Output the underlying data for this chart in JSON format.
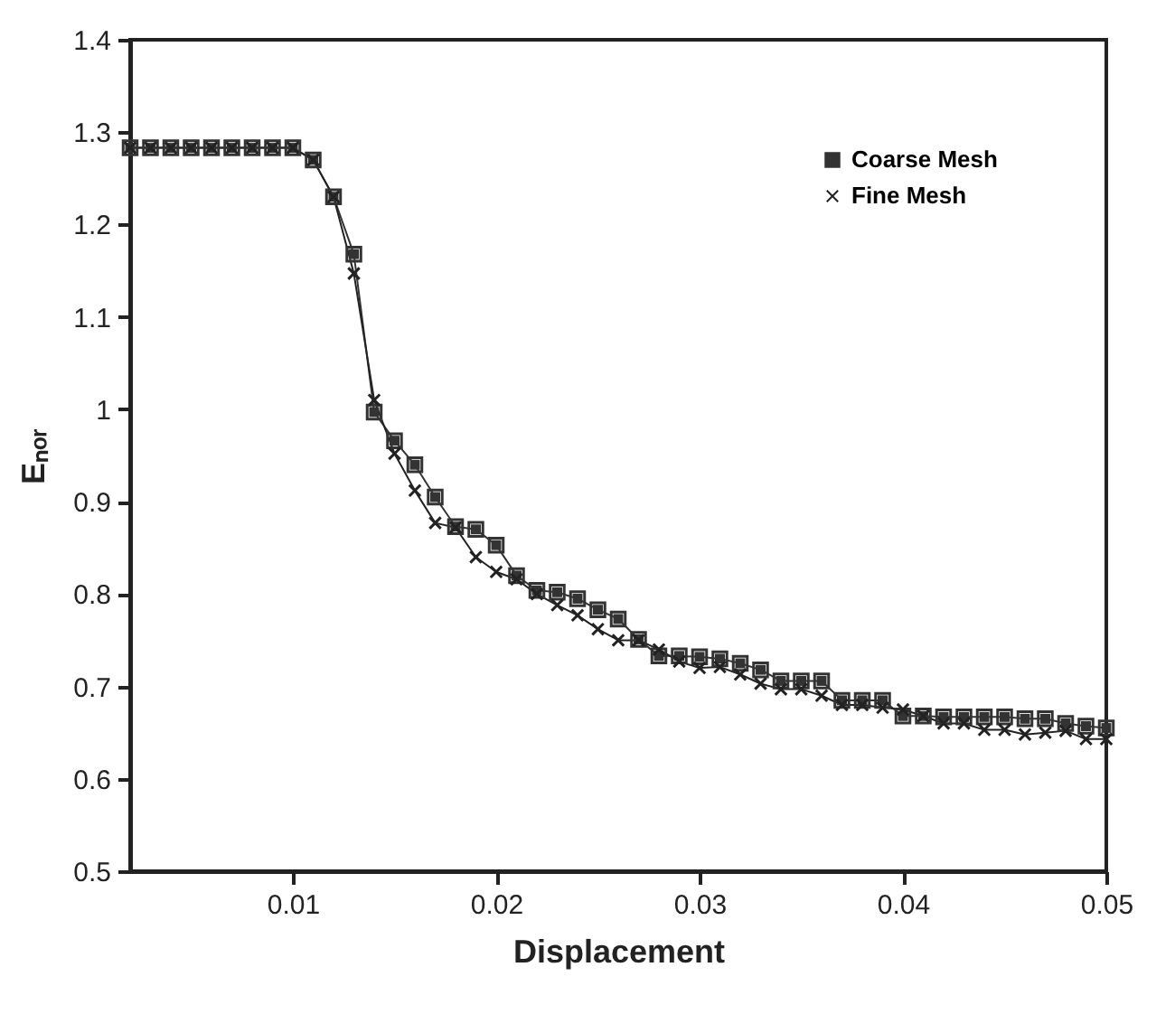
{
  "chart_data": {
    "type": "line",
    "xlabel": "Displacement",
    "ylabel": "Eₙₒᵣ",
    "x": [
      0.002,
      0.003,
      0.004,
      0.005,
      0.006,
      0.007,
      0.008,
      0.009,
      0.01,
      0.011,
      0.012,
      0.013,
      0.014,
      0.015,
      0.016,
      0.017,
      0.018,
      0.019,
      0.02,
      0.021,
      0.022,
      0.023,
      0.024,
      0.025,
      0.026,
      0.027,
      0.028,
      0.029,
      0.03,
      0.031,
      0.032,
      0.033,
      0.034,
      0.035,
      0.036,
      0.037,
      0.038,
      0.039,
      0.04,
      0.041,
      0.042,
      0.043,
      0.044,
      0.045,
      0.046,
      0.047,
      0.048,
      0.049,
      0.05
    ],
    "series": [
      {
        "name": "Coarse Mesh",
        "color": "#333333",
        "marker": "square",
        "values": [
          1.283,
          1.283,
          1.283,
          1.283,
          1.283,
          1.283,
          1.283,
          1.283,
          1.283,
          1.27,
          1.23,
          1.168,
          0.997,
          0.966,
          0.94,
          0.905,
          0.873,
          0.87,
          0.853,
          0.82,
          0.804,
          0.802,
          0.795,
          0.783,
          0.773,
          0.751,
          0.733,
          0.733,
          0.732,
          0.73,
          0.725,
          0.718,
          0.706,
          0.706,
          0.706,
          0.685,
          0.685,
          0.685,
          0.668,
          0.668,
          0.667,
          0.667,
          0.667,
          0.667,
          0.665,
          0.665,
          0.66,
          0.657,
          0.655
        ]
      },
      {
        "name": "Fine Mesh",
        "color": "#222222",
        "marker": "cross",
        "values": [
          1.283,
          1.283,
          1.283,
          1.283,
          1.283,
          1.283,
          1.283,
          1.283,
          1.283,
          1.27,
          1.23,
          1.147,
          1.01,
          0.952,
          0.912,
          0.877,
          0.872,
          0.84,
          0.824,
          0.816,
          0.8,
          0.788,
          0.777,
          0.762,
          0.75,
          0.75,
          0.74,
          0.727,
          0.72,
          0.721,
          0.713,
          0.703,
          0.697,
          0.697,
          0.69,
          0.68,
          0.68,
          0.677,
          0.675,
          0.668,
          0.66,
          0.66,
          0.653,
          0.653,
          0.648,
          0.65,
          0.652,
          0.643,
          0.643
        ]
      }
    ],
    "xlim": [
      0.002,
      0.05
    ],
    "xticks": [
      0.01,
      0.02,
      0.03,
      0.04,
      0.05
    ],
    "ylim": [
      0.5,
      1.4
    ],
    "yticks": [
      0.5,
      0.6,
      0.7,
      0.8,
      0.9,
      1,
      1.1,
      1.2,
      1.3,
      1.4
    ],
    "grid": false,
    "legend": "top right",
    "line_style": "solid"
  }
}
